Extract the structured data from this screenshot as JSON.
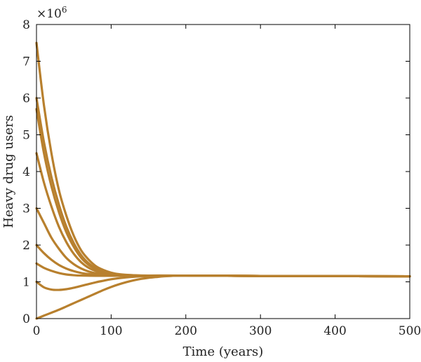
{
  "chart_data": {
    "type": "line",
    "title": "",
    "xlabel": "Time (years)",
    "ylabel": "Heavy drug users",
    "y_multiplier_label": "×10",
    "y_multiplier_exponent": "6",
    "xlim": [
      0,
      500
    ],
    "ylim": [
      0,
      8
    ],
    "x_ticks": [
      0,
      100,
      200,
      300,
      400,
      500
    ],
    "y_ticks": [
      0,
      1,
      2,
      3,
      4,
      5,
      6,
      7,
      8
    ],
    "grid": false,
    "legend": "none",
    "line_color": "#B8802E",
    "equilibrium": 1.15,
    "series": [
      {
        "values": [
          [
            0,
            7.5
          ],
          [
            10,
            5.8
          ],
          [
            20,
            4.5
          ],
          [
            30,
            3.5
          ],
          [
            40,
            2.8
          ],
          [
            50,
            2.25
          ],
          [
            60,
            1.85
          ],
          [
            70,
            1.6
          ],
          [
            80,
            1.42
          ],
          [
            90,
            1.32
          ],
          [
            100,
            1.25
          ],
          [
            110,
            1.21
          ],
          [
            120,
            1.19
          ],
          [
            130,
            1.18
          ],
          [
            150,
            1.17
          ],
          [
            200,
            1.17
          ],
          [
            300,
            1.16
          ],
          [
            500,
            1.15
          ]
        ]
      },
      {
        "values": [
          [
            0,
            6.0
          ],
          [
            10,
            4.8
          ],
          [
            20,
            3.85
          ],
          [
            30,
            3.1
          ],
          [
            40,
            2.5
          ],
          [
            50,
            2.05
          ],
          [
            60,
            1.72
          ],
          [
            70,
            1.5
          ],
          [
            80,
            1.36
          ],
          [
            90,
            1.28
          ],
          [
            100,
            1.23
          ],
          [
            110,
            1.2
          ],
          [
            120,
            1.18
          ],
          [
            140,
            1.17
          ],
          [
            200,
            1.17
          ],
          [
            300,
            1.16
          ],
          [
            500,
            1.15
          ]
        ]
      },
      {
        "values": [
          [
            0,
            5.7
          ],
          [
            10,
            4.5
          ],
          [
            20,
            3.6
          ],
          [
            30,
            2.9
          ],
          [
            40,
            2.35
          ],
          [
            50,
            1.95
          ],
          [
            60,
            1.65
          ],
          [
            70,
            1.46
          ],
          [
            80,
            1.34
          ],
          [
            90,
            1.27
          ],
          [
            100,
            1.22
          ],
          [
            110,
            1.19
          ],
          [
            120,
            1.18
          ],
          [
            140,
            1.17
          ],
          [
            200,
            1.17
          ],
          [
            300,
            1.16
          ],
          [
            500,
            1.15
          ]
        ]
      },
      {
        "values": [
          [
            0,
            4.5
          ],
          [
            10,
            3.7
          ],
          [
            20,
            3.05
          ],
          [
            30,
            2.5
          ],
          [
            40,
            2.08
          ],
          [
            50,
            1.76
          ],
          [
            60,
            1.53
          ],
          [
            70,
            1.38
          ],
          [
            80,
            1.29
          ],
          [
            90,
            1.24
          ],
          [
            100,
            1.21
          ],
          [
            110,
            1.19
          ],
          [
            120,
            1.18
          ],
          [
            140,
            1.17
          ],
          [
            200,
            1.17
          ],
          [
            300,
            1.16
          ],
          [
            500,
            1.15
          ]
        ]
      },
      {
        "values": [
          [
            0,
            3.0
          ],
          [
            10,
            2.6
          ],
          [
            20,
            2.2
          ],
          [
            30,
            1.9
          ],
          [
            40,
            1.65
          ],
          [
            50,
            1.48
          ],
          [
            60,
            1.36
          ],
          [
            70,
            1.28
          ],
          [
            80,
            1.23
          ],
          [
            90,
            1.2
          ],
          [
            100,
            1.19
          ],
          [
            120,
            1.18
          ],
          [
            140,
            1.17
          ],
          [
            200,
            1.17
          ],
          [
            300,
            1.16
          ],
          [
            500,
            1.15
          ]
        ]
      },
      {
        "values": [
          [
            0,
            2.0
          ],
          [
            10,
            1.78
          ],
          [
            20,
            1.6
          ],
          [
            30,
            1.46
          ],
          [
            40,
            1.36
          ],
          [
            50,
            1.29
          ],
          [
            60,
            1.24
          ],
          [
            70,
            1.21
          ],
          [
            80,
            1.19
          ],
          [
            100,
            1.18
          ],
          [
            130,
            1.17
          ],
          [
            200,
            1.17
          ],
          [
            300,
            1.16
          ],
          [
            500,
            1.15
          ]
        ]
      },
      {
        "values": [
          [
            0,
            1.5
          ],
          [
            10,
            1.38
          ],
          [
            20,
            1.3
          ],
          [
            30,
            1.24
          ],
          [
            40,
            1.2
          ],
          [
            50,
            1.18
          ],
          [
            60,
            1.17
          ],
          [
            80,
            1.165
          ],
          [
            100,
            1.165
          ],
          [
            150,
            1.17
          ],
          [
            200,
            1.17
          ],
          [
            300,
            1.16
          ],
          [
            500,
            1.15
          ]
        ]
      },
      {
        "values": [
          [
            0,
            1.0
          ],
          [
            10,
            0.85
          ],
          [
            20,
            0.79
          ],
          [
            30,
            0.78
          ],
          [
            40,
            0.8
          ],
          [
            50,
            0.84
          ],
          [
            60,
            0.89
          ],
          [
            70,
            0.94
          ],
          [
            80,
            0.99
          ],
          [
            90,
            1.03
          ],
          [
            100,
            1.07
          ],
          [
            120,
            1.12
          ],
          [
            140,
            1.15
          ],
          [
            170,
            1.165
          ],
          [
            200,
            1.17
          ],
          [
            300,
            1.16
          ],
          [
            500,
            1.15
          ]
        ]
      },
      {
        "values": [
          [
            0,
            0.0
          ],
          [
            10,
            0.08
          ],
          [
            20,
            0.16
          ],
          [
            30,
            0.24
          ],
          [
            40,
            0.33
          ],
          [
            50,
            0.42
          ],
          [
            60,
            0.51
          ],
          [
            70,
            0.6
          ],
          [
            80,
            0.69
          ],
          [
            90,
            0.78
          ],
          [
            100,
            0.86
          ],
          [
            110,
            0.93
          ],
          [
            120,
            0.99
          ],
          [
            130,
            1.04
          ],
          [
            140,
            1.08
          ],
          [
            150,
            1.11
          ],
          [
            160,
            1.13
          ],
          [
            170,
            1.15
          ],
          [
            180,
            1.16
          ],
          [
            200,
            1.17
          ],
          [
            300,
            1.16
          ],
          [
            500,
            1.15
          ]
        ]
      }
    ]
  }
}
